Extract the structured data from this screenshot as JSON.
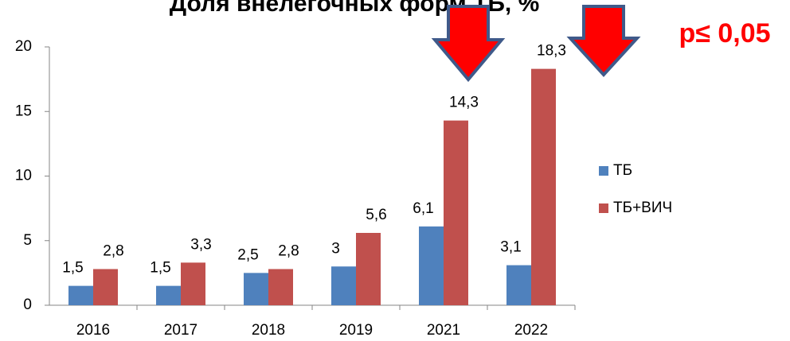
{
  "chart_data": {
    "type": "bar",
    "title": "Доля внелегочных форм ТБ, %",
    "annotation": "p≤ 0,05",
    "categories": [
      "2016",
      "2017",
      "2018",
      "2019",
      "2021",
      "2022"
    ],
    "series": [
      {
        "name": "ТБ",
        "color": "#4f81bd",
        "values": [
          1.5,
          1.5,
          2.5,
          3,
          6.1,
          3.1
        ],
        "value_labels": [
          "1,5",
          "1,5",
          "2,5",
          "3",
          "6,1",
          "3,1"
        ]
      },
      {
        "name": "ТБ+ВИЧ",
        "color": "#c0504d",
        "values": [
          2.8,
          3.3,
          2.8,
          5.6,
          14.3,
          18.3
        ],
        "value_labels": [
          "2,8",
          "3,3",
          "2,8",
          "5,6",
          "14,3",
          "18,3"
        ]
      }
    ],
    "ylim": [
      0,
      20
    ],
    "yticks": [
      0,
      5,
      10,
      15,
      20
    ],
    "grid": false,
    "legend": "right"
  }
}
